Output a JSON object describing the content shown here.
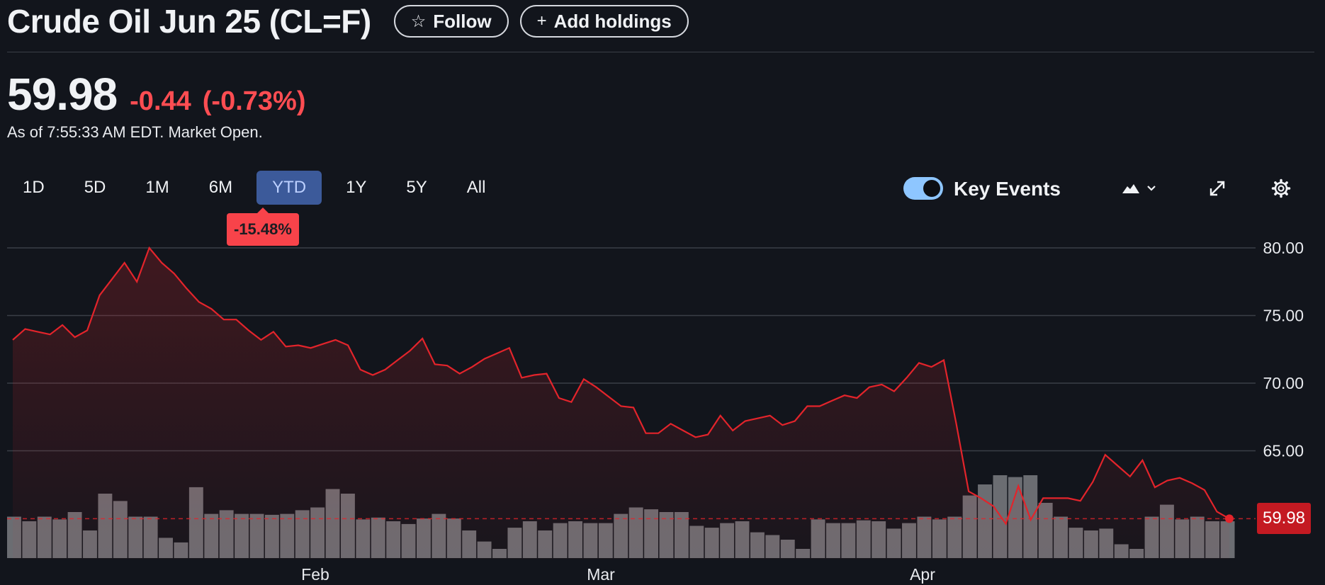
{
  "header": {
    "title": "Crude Oil Jun 25 (CL=F)",
    "follow_label": "Follow",
    "add_holdings_label": "Add holdings"
  },
  "quote": {
    "price": "59.98",
    "change": "-0.44",
    "change_pct": "(-0.73%)",
    "as_of": "As of 7:55:33 AM EDT. Market Open."
  },
  "ranges": [
    "1D",
    "5D",
    "1M",
    "6M",
    "YTD",
    "1Y",
    "5Y",
    "All"
  ],
  "active_range": "YTD",
  "range_return": "-15.48%",
  "key_events": {
    "label": "Key Events",
    "enabled": true
  },
  "icons": {
    "follow": "star-outline-icon",
    "add": "plus-icon",
    "chart_type": "mountain-chart-icon",
    "dropdown": "chevron-down-icon",
    "fullscreen": "expand-icon",
    "settings": "gear-icon"
  },
  "colors": {
    "background": "#12151c",
    "line": "#e3242b",
    "negative": "#ff4d52",
    "volume": "#6b6d72",
    "active_range": "#3c5a9a",
    "toggle": "#8ec6ff"
  },
  "chart_data": {
    "type": "area",
    "x_labels": [
      "Feb",
      "Mar",
      "Apr"
    ],
    "y_ticks": [
      "80.00",
      "75.00",
      "70.00",
      "65.00"
    ],
    "ylim": [
      57.0,
      80.0
    ],
    "last_price_label": "59.98",
    "reference_line": 59.98,
    "grid": true,
    "series": [
      {
        "values": [
          73.2,
          74.0,
          73.8,
          73.6,
          74.3,
          73.4,
          73.9,
          76.5,
          77.7,
          78.9,
          77.5,
          80.0,
          78.9,
          78.1,
          77.0,
          76.0,
          75.5,
          74.7,
          74.7,
          73.9,
          73.2,
          73.8,
          72.7,
          72.8,
          72.6,
          72.9,
          73.2,
          72.8,
          71.0,
          70.6,
          71.0,
          71.7,
          72.4,
          73.3,
          71.4,
          71.3,
          70.7,
          71.2,
          71.8,
          72.2,
          72.6,
          70.4,
          70.6,
          70.7,
          68.9,
          68.6,
          70.3,
          69.7,
          69.0,
          68.3,
          68.2,
          66.3,
          66.3,
          67.0,
          66.5,
          66.0,
          66.2,
          67.6,
          66.5,
          67.2,
          67.4,
          67.6,
          66.9,
          67.2,
          68.3,
          68.3,
          68.7,
          69.1,
          68.9,
          69.7,
          69.9,
          69.4,
          70.4,
          71.5,
          71.2,
          71.7,
          67.0,
          62.0,
          61.5,
          60.9,
          59.6,
          62.4,
          59.9,
          61.5,
          61.5,
          61.5,
          61.3,
          62.7,
          64.7,
          63.9,
          63.1,
          64.3,
          62.3,
          62.8,
          63.0,
          62.6,
          62.1,
          60.5,
          59.98
        ]
      }
    ],
    "volume": [
      0.45,
      0.4,
      0.45,
      0.42,
      0.5,
      0.3,
      0.7,
      0.62,
      0.45,
      0.45,
      0.22,
      0.17,
      0.77,
      0.48,
      0.52,
      0.48,
      0.48,
      0.47,
      0.48,
      0.52,
      0.55,
      0.75,
      0.7,
      0.42,
      0.44,
      0.4,
      0.37,
      0.43,
      0.48,
      0.43,
      0.3,
      0.18,
      0.1,
      0.33,
      0.4,
      0.3,
      0.38,
      0.4,
      0.38,
      0.38,
      0.48,
      0.55,
      0.53,
      0.5,
      0.5,
      0.35,
      0.33,
      0.38,
      0.4,
      0.28,
      0.25,
      0.2,
      0.1,
      0.42,
      0.38,
      0.38,
      0.41,
      0.4,
      0.32,
      0.38,
      0.45,
      0.42,
      0.45,
      0.68,
      0.8,
      0.9,
      0.88,
      0.9,
      0.6,
      0.45,
      0.33,
      0.3,
      0.32,
      0.15,
      0.1,
      0.45,
      0.58,
      0.42,
      0.45,
      0.4,
      0.4
    ]
  }
}
